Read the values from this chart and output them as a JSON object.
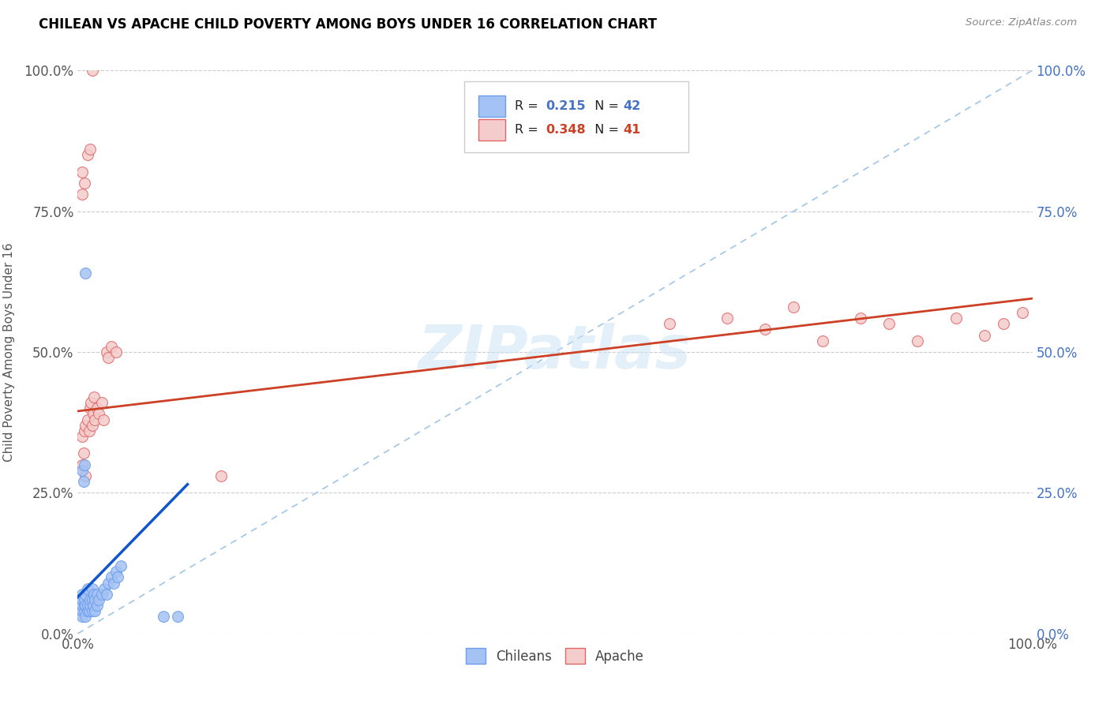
{
  "title": "CHILEAN VS APACHE CHILD POVERTY AMONG BOYS UNDER 16 CORRELATION CHART",
  "source": "Source: ZipAtlas.com",
  "ylabel": "Child Poverty Among Boys Under 16",
  "xlim": [
    0,
    1
  ],
  "ylim": [
    0,
    1
  ],
  "xtick_labels": [
    "0.0%",
    "100.0%"
  ],
  "ytick_labels": [
    "0.0%",
    "25.0%",
    "50.0%",
    "75.0%",
    "100.0%"
  ],
  "ytick_positions": [
    0.0,
    0.25,
    0.5,
    0.75,
    1.0
  ],
  "legend_r_blue": "0.215",
  "legend_n_blue": "42",
  "legend_r_pink": "0.348",
  "legend_n_pink": "41",
  "watermark": "ZIPatlas",
  "blue_color": "#a4c2f4",
  "pink_color": "#f4cccc",
  "blue_edge_color": "#6d9eeb",
  "pink_edge_color": "#e06666",
  "blue_line_color": "#1155cc",
  "pink_line_color": "#cc4125",
  "diag_line_color": "#9fc5e8",
  "chileans_x": [
    0.005,
    0.005,
    0.005,
    0.005,
    0.005,
    0.007,
    0.007,
    0.007,
    0.008,
    0.008,
    0.008,
    0.01,
    0.01,
    0.01,
    0.012,
    0.013,
    0.013,
    0.015,
    0.015,
    0.015,
    0.016,
    0.017,
    0.018,
    0.018,
    0.02,
    0.02,
    0.022,
    0.025,
    0.028,
    0.03,
    0.032,
    0.035,
    0.038,
    0.04,
    0.042,
    0.045,
    0.005,
    0.006,
    0.007,
    0.008,
    0.09,
    0.105
  ],
  "chileans_y": [
    0.03,
    0.04,
    0.05,
    0.06,
    0.07,
    0.04,
    0.05,
    0.06,
    0.03,
    0.05,
    0.07,
    0.04,
    0.05,
    0.08,
    0.04,
    0.05,
    0.06,
    0.04,
    0.06,
    0.08,
    0.05,
    0.07,
    0.04,
    0.06,
    0.05,
    0.07,
    0.06,
    0.07,
    0.08,
    0.07,
    0.09,
    0.1,
    0.09,
    0.11,
    0.1,
    0.12,
    0.29,
    0.27,
    0.3,
    0.64,
    0.03,
    0.03
  ],
  "apache_x": [
    0.005,
    0.007,
    0.008,
    0.01,
    0.012,
    0.013,
    0.014,
    0.015,
    0.016,
    0.017,
    0.018,
    0.02,
    0.022,
    0.025,
    0.027,
    0.03,
    0.032,
    0.035,
    0.005,
    0.006,
    0.008,
    0.04,
    0.15,
    0.62,
    0.68,
    0.72,
    0.75,
    0.78,
    0.82,
    0.85,
    0.88,
    0.92,
    0.95,
    0.97,
    0.99,
    0.005,
    0.005,
    0.007,
    0.01,
    0.013,
    0.015
  ],
  "apache_y": [
    0.35,
    0.36,
    0.37,
    0.38,
    0.36,
    0.4,
    0.41,
    0.37,
    0.39,
    0.42,
    0.38,
    0.4,
    0.39,
    0.41,
    0.38,
    0.5,
    0.49,
    0.51,
    0.3,
    0.32,
    0.28,
    0.5,
    0.28,
    0.55,
    0.56,
    0.54,
    0.58,
    0.52,
    0.56,
    0.55,
    0.52,
    0.56,
    0.53,
    0.55,
    0.57,
    0.78,
    0.82,
    0.8,
    0.85,
    0.86,
    1.0
  ]
}
